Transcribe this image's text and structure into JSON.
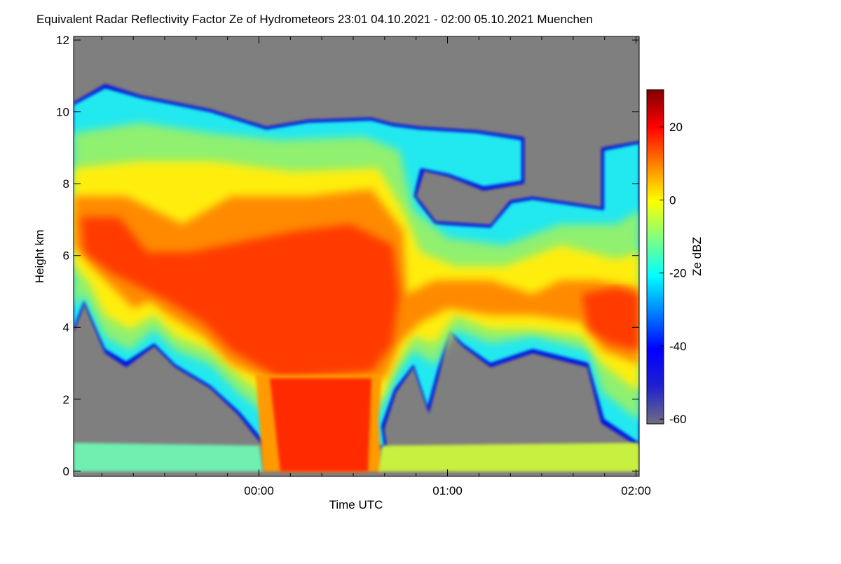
{
  "chart_data": {
    "type": "heatmap",
    "title": "Equivalent Radar Reflectivity Factor Ze of Hydrometeors   23:01 04.10.2021 - 02:00 05.10.2021 Muenchen",
    "xlabel": "Time UTC",
    "ylabel": "Height km",
    "xlim": [
      1,
      181
    ],
    "xticks": [
      {
        "value": 60,
        "label": "00:00"
      },
      {
        "value": 120,
        "label": "01:00"
      },
      {
        "value": 180,
        "label": "02:00"
      }
    ],
    "xminorticks": [
      10,
      20,
      30,
      40,
      50,
      70,
      80,
      90,
      100,
      110,
      130,
      140,
      150,
      160,
      170
    ],
    "ylim": [
      -0.15,
      12.1
    ],
    "yticks": [
      0,
      2,
      4,
      6,
      8,
      10,
      12
    ],
    "background": "#7f7f7f",
    "colorbar": {
      "label": "Ze dBZ",
      "lim": [
        -61.3,
        30.2
      ],
      "ticks": [
        20,
        0,
        -20,
        -40,
        -60
      ],
      "colors": [
        "#6f6f7f",
        "#2020d0",
        "#0000ff",
        "#0080ff",
        "#00ffff",
        "#80ff80",
        "#ffff00",
        "#ff8000",
        "#ff0000",
        "#800000"
      ]
    }
  }
}
